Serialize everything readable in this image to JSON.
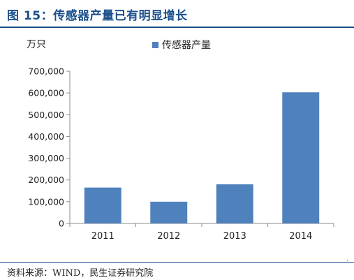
{
  "header": {
    "title": "图 15：传感器产量已有明显增长"
  },
  "footer": {
    "source": "资料来源：WIND，民生证券研究院",
    "mark": "."
  },
  "chart_data": {
    "type": "bar",
    "unit_label": "万只",
    "categories": [
      "2011",
      "2012",
      "2013",
      "2014"
    ],
    "series": [
      {
        "name": "传感器产量",
        "values": [
          165000,
          100000,
          180000,
          603000
        ],
        "color": "#4f81bd"
      }
    ],
    "ylim": [
      0,
      700000
    ],
    "yticks": [
      0,
      100000,
      200000,
      300000,
      400000,
      500000,
      600000,
      700000
    ],
    "ytick_labels": [
      "0",
      "100,000",
      "200,000",
      "300,000",
      "400,000",
      "500,000",
      "600,000",
      "700,000"
    ],
    "grid": false,
    "legend_position": "top-right"
  }
}
